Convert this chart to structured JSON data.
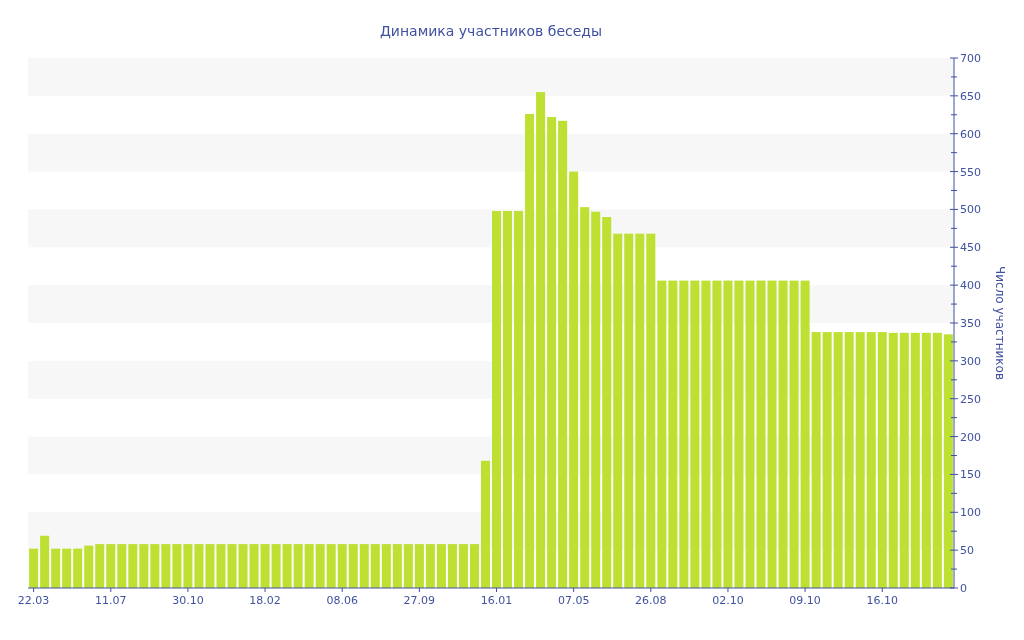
{
  "chart_data": {
    "type": "bar",
    "title": "Динамика участников беседы",
    "ylabel": "Число участников",
    "categories": [
      "22.03",
      null,
      null,
      null,
      null,
      null,
      null,
      "11.07",
      null,
      null,
      null,
      null,
      null,
      null,
      "30.10",
      null,
      null,
      null,
      null,
      null,
      null,
      "18.02",
      null,
      null,
      null,
      null,
      null,
      null,
      "08.06",
      null,
      null,
      null,
      null,
      null,
      null,
      "27.09",
      null,
      null,
      null,
      null,
      null,
      null,
      "16.01",
      null,
      null,
      null,
      null,
      null,
      null,
      "07.05",
      null,
      null,
      null,
      null,
      null,
      null,
      "26.08",
      null,
      null,
      null,
      null,
      null,
      null,
      "02.10",
      null,
      null,
      null,
      null,
      null,
      null,
      "09.10",
      null,
      null,
      null,
      null,
      null,
      null,
      "16.10",
      null,
      null,
      null,
      null,
      null,
      null
    ],
    "values": [
      52,
      69,
      52,
      52,
      52,
      56,
      58,
      58,
      58,
      58,
      58,
      58,
      58,
      58,
      58,
      58,
      58,
      58,
      58,
      58,
      58,
      58,
      58,
      58,
      58,
      58,
      58,
      58,
      58,
      58,
      58,
      58,
      58,
      58,
      58,
      58,
      58,
      58,
      58,
      58,
      58,
      168,
      498,
      498,
      498,
      626,
      655,
      622,
      617,
      550,
      503,
      497,
      490,
      468,
      468,
      468,
      468,
      406,
      406,
      406,
      406,
      406,
      406,
      406,
      406,
      406,
      406,
      406,
      406,
      406,
      406,
      338,
      338,
      338,
      338,
      338,
      338,
      338,
      337,
      337,
      337,
      337,
      337,
      335
    ],
    "color": "#bde033",
    "ylim": [
      0,
      700
    ],
    "yticks": [
      0,
      {
        "value": 25,
        "label": null
      },
      50,
      {
        "value": 75,
        "label": null
      },
      100,
      {
        "value": 125,
        "label": null
      },
      150,
      {
        "value": 175,
        "label": null
      },
      200,
      {
        "value": 225,
        "label": null
      },
      250,
      {
        "value": 275,
        "label": null
      },
      300,
      {
        "value": 325,
        "label": null
      },
      350,
      {
        "value": 375,
        "label": null
      },
      400,
      {
        "value": 425,
        "label": null
      },
      450,
      {
        "value": 475,
        "label": null
      },
      500,
      {
        "value": 525,
        "label": null
      },
      550,
      {
        "value": 575,
        "label": null
      },
      600,
      {
        "value": 625,
        "label": null
      },
      650,
      {
        "value": 675,
        "label": null
      },
      700
    ]
  }
}
